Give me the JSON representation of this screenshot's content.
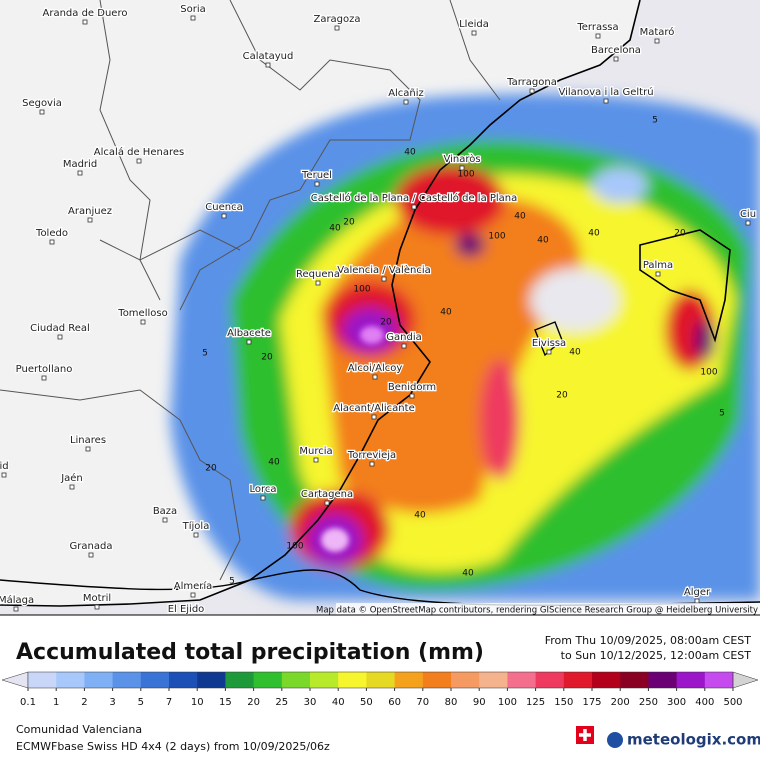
{
  "map": {
    "cities": [
      "Aranda de Duero",
      "Soria",
      "Zaragoza",
      "Lleida",
      "Terrassa",
      "Mataró",
      "Barcelona",
      "Calatayud",
      "Tarragona",
      "Vilanova i la Geltrú",
      "Segovia",
      "Alcañiz",
      "Alcalá de Henares",
      "Madrid",
      "Teruel",
      "Vinaròs",
      "Castelló de la Plana / Castelló de la Plana",
      "Aranjuez",
      "Cuenca",
      "Toledo",
      "Valencia / València",
      "Palma",
      "Requena",
      "Ciudad Real",
      "Tomelloso",
      "Albacete",
      "Gandia",
      "Eivissa",
      "Puertollano",
      "Alcoi/Alcoy",
      "Benidorm",
      "Alacant/Alicante",
      "Linares",
      "Murcia",
      "Torrevieja",
      "Jaén",
      "Lorca",
      "Cartagena",
      "Baza",
      "Tíjola",
      "Granada",
      "Almería",
      "Motril",
      "Málaga",
      "El Ejido",
      "Alger",
      "Ciu",
      "id"
    ],
    "contour_labels": [
      "40",
      "100",
      "20",
      "40",
      "100",
      "40",
      "40",
      "20",
      "40",
      "5",
      "100",
      "20",
      "40",
      "40",
      "100",
      "20",
      "5",
      "40",
      "20",
      "100",
      "40",
      "40",
      "5",
      "20",
      "5"
    ],
    "attribution": "Map data © OpenStreetMap contributors, rendering GIScience Research Group @ Heidelberg University"
  },
  "legend": {
    "title": "Accumulated total precipitation (mm)",
    "period_from": "From Thu 10/09/2025, 08:00am CEST",
    "period_to": "to Sun 10/12/2025, 12:00am CEST",
    "ticks": [
      0.1,
      1,
      2,
      3,
      5,
      7,
      10,
      15,
      20,
      25,
      30,
      40,
      50,
      60,
      70,
      80,
      90,
      100,
      125,
      150,
      175,
      200,
      250,
      300,
      400,
      500
    ],
    "colors": [
      "#e4e4f2",
      "#c9d6f7",
      "#a8c8fb",
      "#7fb0f5",
      "#5a92e8",
      "#3a73d6",
      "#1d50b6",
      "#0f3890",
      "#1f9a3a",
      "#2fbf2f",
      "#7ad82a",
      "#b8ea2c",
      "#f6f52e",
      "#e6d923",
      "#f4a21e",
      "#f37e1d",
      "#f69a63",
      "#f4b38c",
      "#f46f8e",
      "#ee3a5e",
      "#e0192c",
      "#b3001b",
      "#8a0023",
      "#6a0074",
      "#9a16c8",
      "#c64bee",
      "#e07ef4",
      "#eeb5f7",
      "#f4eaf8",
      "#d4d4d4"
    ],
    "region": "Comunidad Valenciana",
    "model": "ECMWFbase Swiss HD 4x4 (2 days) from  10/09/2025/06z",
    "brand": "meteologix.com"
  }
}
